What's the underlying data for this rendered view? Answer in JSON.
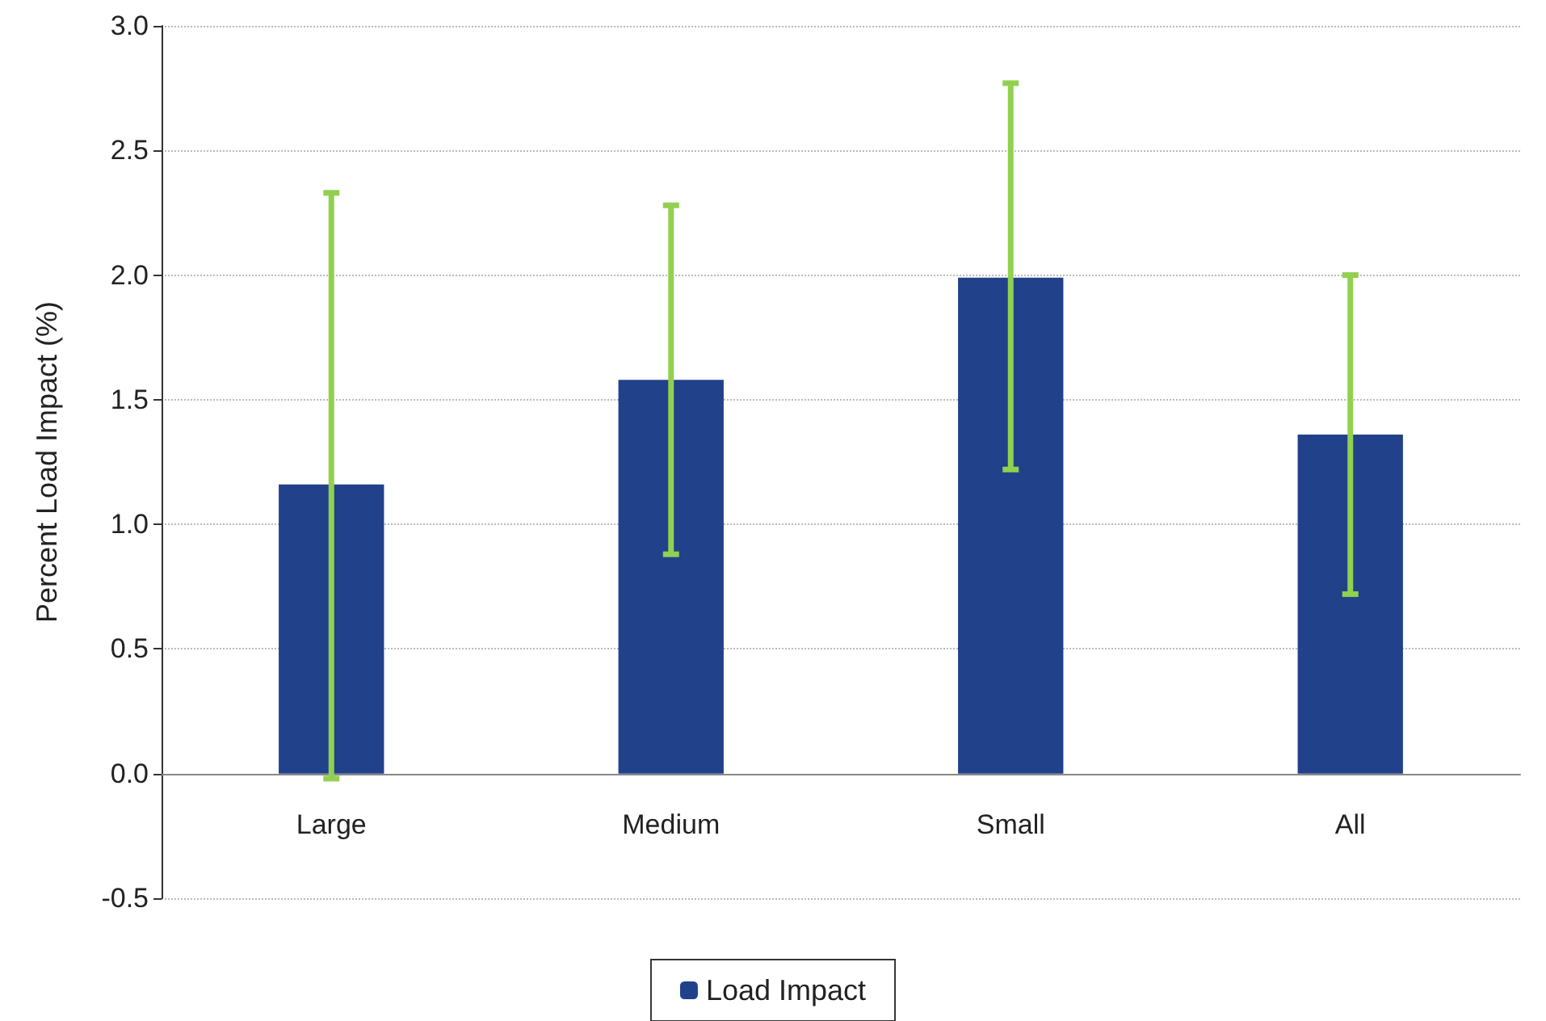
{
  "chart_data": {
    "type": "bar",
    "ylabel": "Percent Load Impact (%)",
    "categories": [
      "Large",
      "Medium",
      "Small",
      "All"
    ],
    "series": [
      {
        "name": "Load Impact",
        "color": "#22418b",
        "values": [
          1.16,
          1.58,
          1.99,
          1.36
        ],
        "errors": [
          [
            -0.02,
            2.33
          ],
          [
            0.88,
            2.28
          ],
          [
            1.22,
            2.77
          ],
          [
            0.72,
            2.0
          ]
        ]
      }
    ],
    "ylim": [
      -0.5,
      3.0
    ],
    "yticks": [
      {
        "value": -0.5,
        "label": "-0.5"
      },
      {
        "value": 0,
        "label": "0.0"
      },
      {
        "value": 0.5,
        "label": "0.5"
      },
      {
        "value": 1,
        "label": "1.0"
      },
      {
        "value": 1.5,
        "label": "1.5"
      },
      {
        "value": 2,
        "label": "2.0"
      },
      {
        "value": 2.5,
        "label": "2.5"
      },
      {
        "value": 3,
        "label": "3.0"
      }
    ],
    "grid": "y",
    "legend": "bottom"
  }
}
